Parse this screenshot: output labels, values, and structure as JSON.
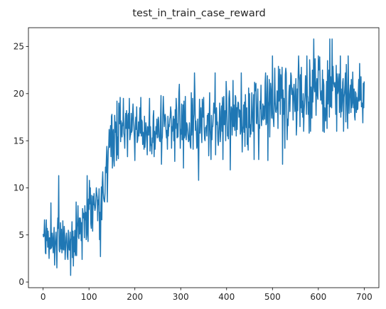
{
  "chart_data": {
    "type": "line",
    "title": "test_in_train_case_reward",
    "xlabel": "",
    "ylabel": "",
    "xlim": [
      -32,
      732
    ],
    "ylim": [
      -0.6,
      27.0
    ],
    "x_ticks": [
      0,
      100,
      200,
      300,
      400,
      500,
      600,
      700
    ],
    "y_ticks": [
      0,
      5,
      10,
      15,
      20,
      25
    ],
    "grid": false,
    "series_color": "#1f77b4",
    "series": [
      {
        "x_start": 0,
        "x_step": 1,
        "trend_points": [
          [
            0,
            4.2
          ],
          [
            10,
            4.4
          ],
          [
            20,
            4.2
          ],
          [
            30,
            4.6
          ],
          [
            40,
            4.2
          ],
          [
            50,
            4.0
          ],
          [
            60,
            4.0
          ],
          [
            70,
            4.6
          ],
          [
            80,
            5.2
          ],
          [
            90,
            5.8
          ],
          [
            100,
            7.2
          ],
          [
            110,
            7.8
          ],
          [
            120,
            8.3
          ],
          [
            130,
            9.5
          ],
          [
            140,
            13.0
          ],
          [
            150,
            15.0
          ],
          [
            160,
            16.3
          ],
          [
            180,
            16.5
          ],
          [
            200,
            16.4
          ],
          [
            250,
            16.6
          ],
          [
            300,
            16.7
          ],
          [
            350,
            17.0
          ],
          [
            400,
            17.3
          ],
          [
            450,
            18.0
          ],
          [
            500,
            18.8
          ],
          [
            550,
            19.4
          ],
          [
            600,
            19.7
          ],
          [
            650,
            19.9
          ],
          [
            700,
            19.8
          ]
        ],
        "noise_points": [
          [
            0,
            1.3
          ],
          [
            100,
            1.7
          ],
          [
            150,
            1.9
          ],
          [
            300,
            1.9
          ],
          [
            500,
            2.2
          ],
          [
            700,
            2.2
          ]
        ],
        "spikes": [
          [
            3,
            6.6
          ],
          [
            6,
            3.0
          ],
          [
            13,
            2.5
          ],
          [
            17,
            8.4
          ],
          [
            25,
            1.8
          ],
          [
            34,
            11.3
          ],
          [
            48,
            2.4
          ],
          [
            53,
            2.7
          ],
          [
            60,
            0.7
          ],
          [
            66,
            1.7
          ],
          [
            72,
            8.5
          ],
          [
            85,
            2.4
          ],
          [
            96,
            11.3
          ],
          [
            103,
            10.0
          ],
          [
            116,
            10.0
          ],
          [
            123,
            4.5
          ],
          [
            125,
            2.7
          ],
          [
            140,
            8.5
          ],
          [
            150,
            17.8
          ],
          [
            160,
            12.9
          ],
          [
            175,
            19.5
          ],
          [
            188,
            19.5
          ],
          [
            200,
            12.9
          ],
          [
            213,
            19.6
          ],
          [
            220,
            14.1
          ],
          [
            232,
            19.5
          ],
          [
            244,
            14.1
          ],
          [
            258,
            12.5
          ],
          [
            262,
            19.7
          ],
          [
            270,
            16.1
          ],
          [
            280,
            14.2
          ],
          [
            290,
            19.5
          ],
          [
            306,
            12.1
          ],
          [
            310,
            19.7
          ],
          [
            322,
            14.2
          ],
          [
            330,
            22.2
          ],
          [
            335,
            14.2
          ],
          [
            339,
            10.8
          ],
          [
            350,
            19.6
          ],
          [
            366,
            13.0
          ],
          [
            375,
            22.2
          ],
          [
            392,
            13.0
          ],
          [
            400,
            20.0
          ],
          [
            408,
            11.9
          ],
          [
            420,
            19.6
          ],
          [
            432,
            22.2
          ],
          [
            440,
            14.4
          ],
          [
            450,
            20.0
          ],
          [
            460,
            13.0
          ],
          [
            470,
            13.0
          ],
          [
            485,
            22.2
          ],
          [
            490,
            12.9
          ],
          [
            500,
            24.0
          ],
          [
            522,
            12.5
          ],
          [
            527,
            14.2
          ],
          [
            540,
            22.2
          ],
          [
            557,
            24.0
          ],
          [
            568,
            16.0
          ],
          [
            575,
            24.0
          ],
          [
            583,
            16.0
          ],
          [
            590,
            25.8
          ],
          [
            600,
            24.0
          ],
          [
            610,
            16.0
          ],
          [
            625,
            25.8
          ],
          [
            630,
            25.8
          ],
          [
            640,
            16.0
          ],
          [
            648,
            24.0
          ],
          [
            655,
            16.0
          ],
          [
            665,
            24.0
          ],
          [
            680,
            17.2
          ],
          [
            690,
            23.2
          ],
          [
            693,
            21.8
          ],
          [
            697,
            16.9
          ],
          [
            699,
            18.5
          ]
        ],
        "values": []
      }
    ]
  }
}
